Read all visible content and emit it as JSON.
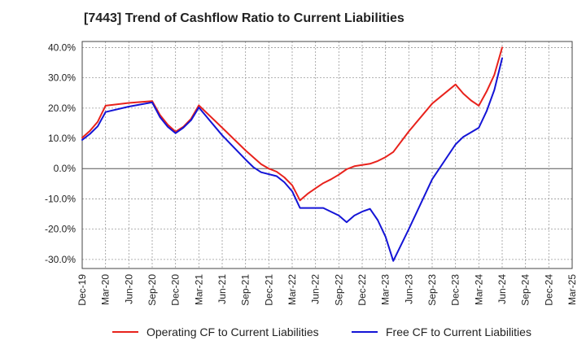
{
  "chart_data": {
    "type": "line",
    "title": "[7443]  Trend of Cashflow Ratio to Current Liabilities",
    "xlabel": "",
    "ylabel": "",
    "x_ticks": [
      "Dec-19",
      "Mar-20",
      "Jun-20",
      "Sep-20",
      "Dec-20",
      "Mar-21",
      "Jun-21",
      "Sep-21",
      "Dec-21",
      "Mar-22",
      "Jun-22",
      "Sep-22",
      "Dec-22",
      "Mar-23",
      "Jun-23",
      "Sep-23",
      "Dec-23",
      "Mar-24",
      "Jun-24",
      "Sep-24",
      "Dec-24",
      "Mar-25"
    ],
    "y_ticks": [
      "40.0%",
      "30.0%",
      "20.0%",
      "10.0%",
      "0.0%",
      "-10.0%",
      "-20.0%",
      "-30.0%"
    ],
    "ylim": [
      -33,
      42
    ],
    "grid": true,
    "legend_position": "bottom",
    "series": [
      {
        "name": "Operating CF to Current Liabilities",
        "color": "#e8221c",
        "points": [
          [
            0,
            10.2
          ],
          [
            1,
            12.5
          ],
          [
            2,
            15.5
          ],
          [
            3,
            20.8
          ],
          [
            6,
            21.7
          ],
          [
            9,
            22.3
          ],
          [
            10,
            17.7
          ],
          [
            11,
            14.5
          ],
          [
            12,
            12.2
          ],
          [
            13,
            13.8
          ],
          [
            14,
            16.5
          ],
          [
            15,
            20.9
          ],
          [
            18,
            13.5
          ],
          [
            21,
            6.0
          ],
          [
            23,
            1.5
          ],
          [
            24,
            0.0
          ],
          [
            25,
            -1.0
          ],
          [
            26,
            -2.9
          ],
          [
            27,
            -5.5
          ],
          [
            28,
            -10.5
          ],
          [
            29,
            -8.3
          ],
          [
            30,
            -6.5
          ],
          [
            31,
            -4.8
          ],
          [
            32,
            -3.5
          ],
          [
            33,
            -2.0
          ],
          [
            34,
            -0.2
          ],
          [
            35,
            0.8
          ],
          [
            36,
            1.2
          ],
          [
            37,
            1.6
          ],
          [
            38,
            2.5
          ],
          [
            39,
            3.8
          ],
          [
            40,
            5.5
          ],
          [
            42,
            12.3
          ],
          [
            45,
            21.5
          ],
          [
            48,
            27.8
          ],
          [
            49,
            24.8
          ],
          [
            50,
            22.5
          ],
          [
            51,
            20.8
          ],
          [
            52,
            25.5
          ],
          [
            53,
            31.0
          ],
          [
            54,
            40.0
          ]
        ]
      },
      {
        "name": "Free CF to Current Liabilities",
        "color": "#1414d6",
        "points": [
          [
            0,
            9.5
          ],
          [
            1,
            11.5
          ],
          [
            2,
            14.0
          ],
          [
            3,
            18.7
          ],
          [
            6,
            20.5
          ],
          [
            9,
            21.9
          ],
          [
            10,
            17.0
          ],
          [
            11,
            13.8
          ],
          [
            12,
            11.7
          ],
          [
            13,
            13.5
          ],
          [
            14,
            16.0
          ],
          [
            15,
            20.2
          ],
          [
            18,
            11.0
          ],
          [
            21,
            3.0
          ],
          [
            22,
            0.5
          ],
          [
            23,
            -1.2
          ],
          [
            25,
            -2.5
          ],
          [
            26,
            -4.5
          ],
          [
            27,
            -7.5
          ],
          [
            28,
            -13.0
          ],
          [
            31,
            -13.0
          ],
          [
            33,
            -15.5
          ],
          [
            34,
            -17.7
          ],
          [
            35,
            -15.5
          ],
          [
            36,
            -14.2
          ],
          [
            37,
            -13.3
          ],
          [
            38,
            -17.0
          ],
          [
            39,
            -22.5
          ],
          [
            40,
            -30.5
          ],
          [
            42,
            -20.0
          ],
          [
            45,
            -3.5
          ],
          [
            48,
            8.0
          ],
          [
            49,
            10.5
          ],
          [
            50,
            12.0
          ],
          [
            51,
            13.5
          ],
          [
            52,
            19.0
          ],
          [
            53,
            26.0
          ],
          [
            54,
            36.5
          ]
        ]
      }
    ]
  }
}
